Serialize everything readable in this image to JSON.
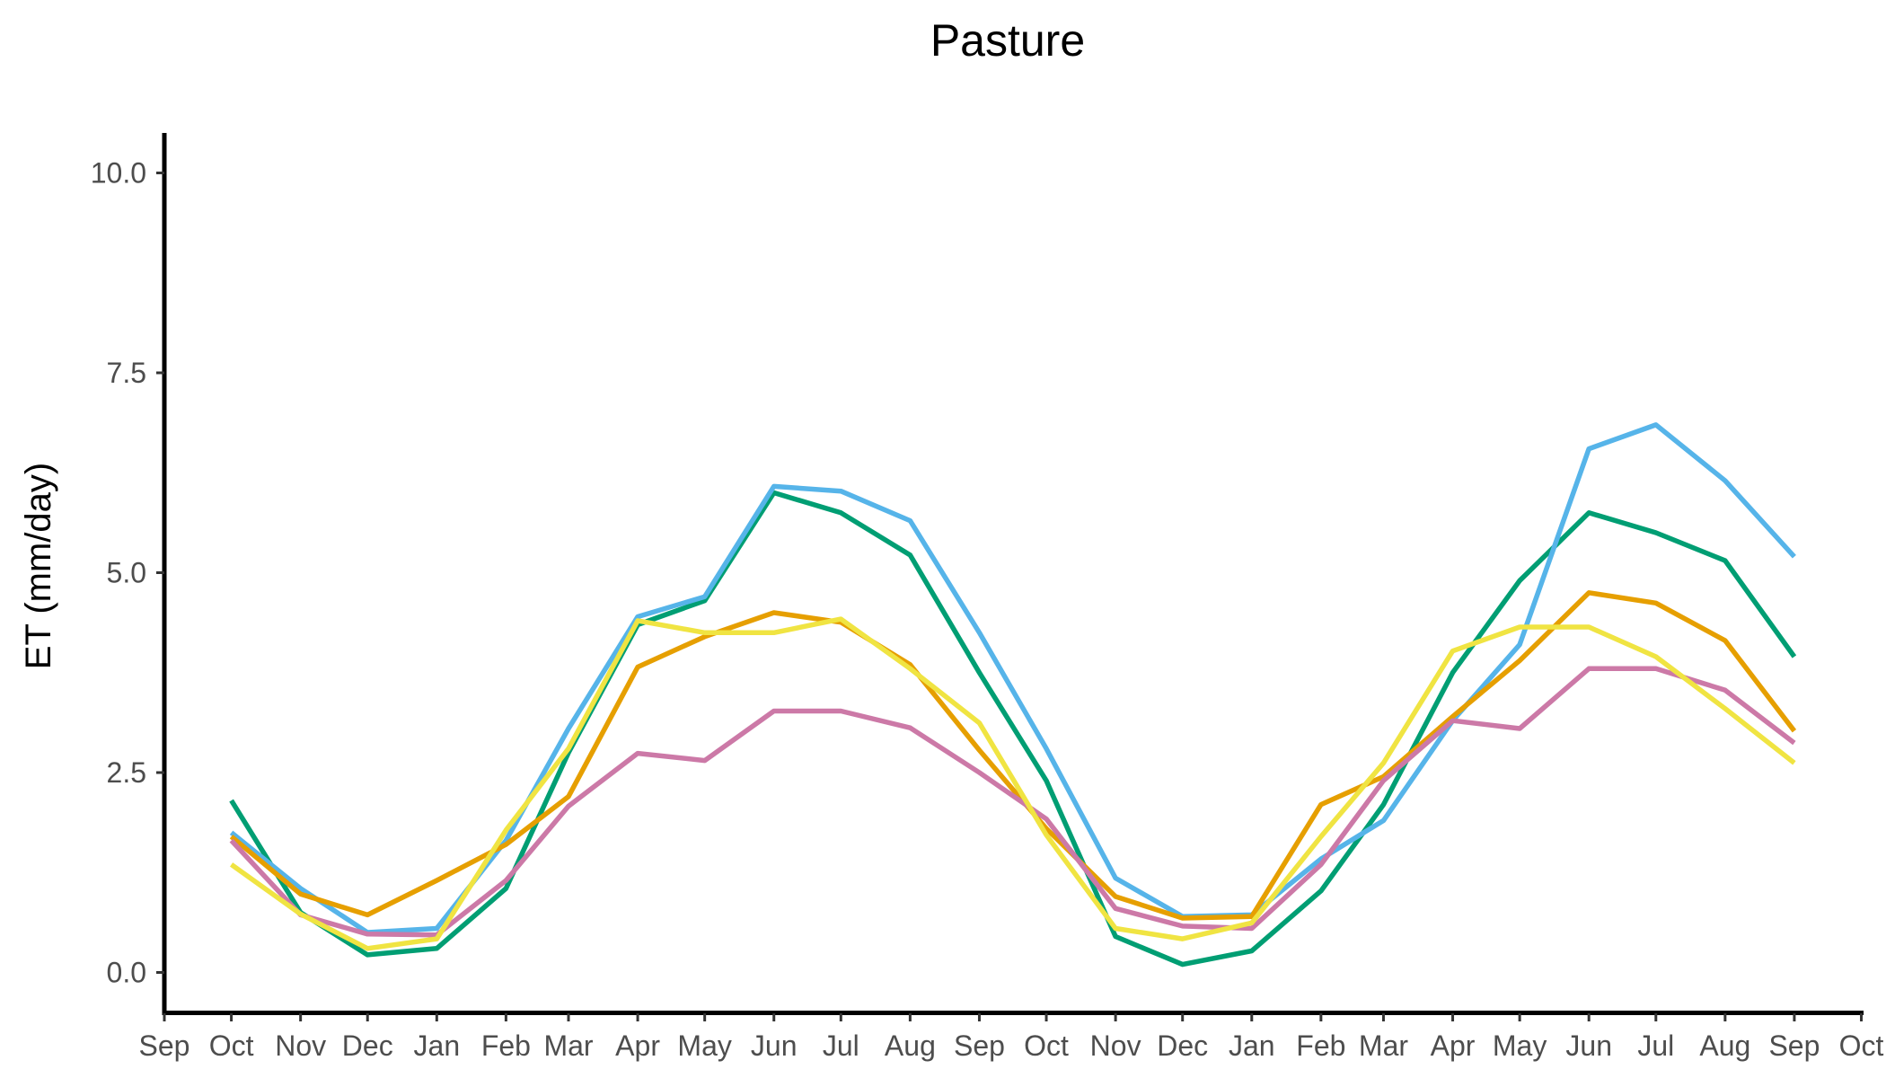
{
  "chart_data": {
    "type": "line",
    "title": "Pasture",
    "xlabel": "",
    "ylabel": "ET (mm/day)",
    "ylim": [
      -0.5,
      10.5
    ],
    "yticks": [
      0.0,
      2.5,
      5.0,
      7.5,
      10.0
    ],
    "ytick_labels": [
      "0.0",
      "2.5",
      "5.0",
      "7.5",
      "10.0"
    ],
    "xlim": [
      "2009-09-01",
      "2011-10-02"
    ],
    "xticks": [
      "2009-09-01",
      "2009-10-01",
      "2009-11-01",
      "2009-12-01",
      "2010-01-01",
      "2010-02-01",
      "2010-03-01",
      "2010-04-01",
      "2010-05-01",
      "2010-06-01",
      "2010-07-01",
      "2010-08-01",
      "2010-09-01",
      "2010-10-01",
      "2010-11-01",
      "2010-12-01",
      "2011-01-01",
      "2011-02-01",
      "2011-03-01",
      "2011-04-01",
      "2011-05-01",
      "2011-06-01",
      "2011-07-01",
      "2011-08-01",
      "2011-09-01",
      "2011-10-01"
    ],
    "xtick_labels": [
      "Sep",
      "Oct",
      "Nov",
      "Dec",
      "Jan",
      "Feb",
      "Mar",
      "Apr",
      "May",
      "Jun",
      "Jul",
      "Aug",
      "Sep",
      "Oct",
      "Nov",
      "Dec",
      "Jan",
      "Feb",
      "Mar",
      "Apr",
      "May",
      "Jun",
      "Jul",
      "Aug",
      "Sep",
      "Oct"
    ],
    "grid": false,
    "legend": "none",
    "x": [
      "2009-10-01",
      "2009-11-01",
      "2009-12-01",
      "2010-01-01",
      "2010-02-01",
      "2010-03-01",
      "2010-04-01",
      "2010-05-01",
      "2010-06-01",
      "2010-07-01",
      "2010-08-01",
      "2010-09-01",
      "2010-10-01",
      "2010-11-01",
      "2010-12-01",
      "2011-01-01",
      "2011-02-01",
      "2011-03-01",
      "2011-04-01",
      "2011-05-01",
      "2011-06-01",
      "2011-07-01",
      "2011-08-01",
      "2011-09-01"
    ],
    "series": [
      {
        "color": "#009E73",
        "values": [
          2.15,
          0.75,
          0.22,
          0.3,
          1.05,
          2.75,
          4.35,
          4.65,
          6.0,
          5.75,
          5.22,
          3.75,
          2.4,
          0.45,
          0.1,
          0.27,
          1.02,
          2.1,
          3.75,
          4.9,
          5.75,
          5.5,
          5.15,
          3.95
        ]
      },
      {
        "color": "#56B4E9",
        "values": [
          1.75,
          1.05,
          0.5,
          0.55,
          1.65,
          3.05,
          4.45,
          4.7,
          6.08,
          6.02,
          5.65,
          4.25,
          2.8,
          1.18,
          0.7,
          0.72,
          1.42,
          1.9,
          3.15,
          4.1,
          6.55,
          6.85,
          6.15,
          5.2
        ]
      },
      {
        "color": "#E69F00",
        "values": [
          1.7,
          0.98,
          0.72,
          1.15,
          1.6,
          2.2,
          3.82,
          4.2,
          4.5,
          4.38,
          3.85,
          2.78,
          1.8,
          0.95,
          0.68,
          0.7,
          2.1,
          2.45,
          3.2,
          3.9,
          4.75,
          4.62,
          4.15,
          3.02
        ]
      },
      {
        "color": "#CC79A7",
        "values": [
          1.65,
          0.72,
          0.48,
          0.47,
          1.15,
          2.08,
          2.74,
          2.65,
          3.27,
          3.27,
          3.06,
          2.5,
          1.92,
          0.8,
          0.58,
          0.55,
          1.35,
          2.4,
          3.15,
          3.05,
          3.8,
          3.8,
          3.53,
          2.87
        ]
      },
      {
        "color": "#F0E442",
        "values": [
          1.35,
          0.73,
          0.3,
          0.42,
          1.78,
          2.8,
          4.4,
          4.25,
          4.25,
          4.42,
          3.8,
          3.12,
          1.72,
          0.55,
          0.42,
          0.62,
          1.7,
          2.62,
          4.02,
          4.32,
          4.32,
          3.95,
          3.3,
          2.62
        ]
      }
    ]
  }
}
